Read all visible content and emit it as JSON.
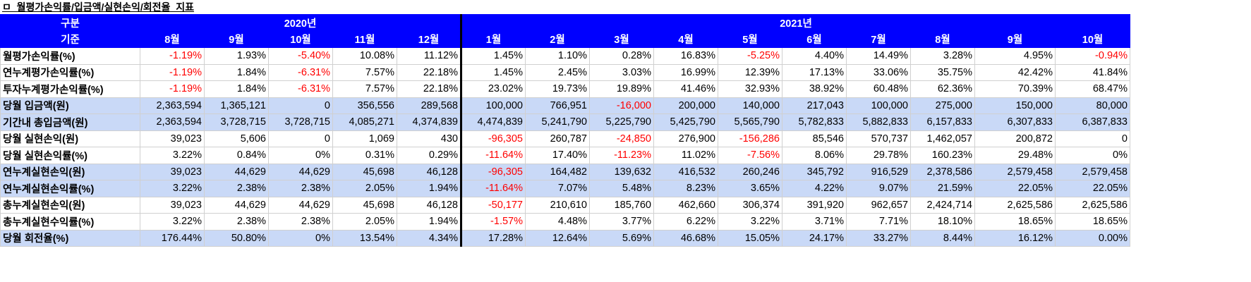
{
  "title": "ㅁ_월평가손익률/입금액/실현손익/회전율_지표",
  "header": {
    "row1_label": "구분",
    "row2_label": "기준",
    "year_2020": "2020년",
    "year_2021": "2021년",
    "months_2020": [
      "8월",
      "9월",
      "10월",
      "11월",
      "12월"
    ],
    "months_2021": [
      "1월",
      "2월",
      "3월",
      "4월",
      "5월",
      "6월",
      "7월",
      "8월",
      "9월",
      "10월"
    ]
  },
  "rows": [
    {
      "label": "월평가손익률(%)",
      "shaded": false,
      "values": [
        "-1.19%",
        "1.93%",
        "-5.40%",
        "10.08%",
        "11.12%",
        "1.45%",
        "1.10%",
        "0.28%",
        "16.83%",
        "-5.25%",
        "4.40%",
        "14.49%",
        "3.28%",
        "4.95%",
        "-0.94%"
      ]
    },
    {
      "label": "연누계평가손익률(%)",
      "shaded": false,
      "values": [
        "-1.19%",
        "1.84%",
        "-6.31%",
        "7.57%",
        "22.18%",
        "1.45%",
        "2.45%",
        "3.03%",
        "16.99%",
        "12.39%",
        "17.13%",
        "33.06%",
        "35.75%",
        "42.42%",
        "41.84%"
      ]
    },
    {
      "label": "투자누계평가손익률(%)",
      "shaded": false,
      "values": [
        "-1.19%",
        "1.84%",
        "-6.31%",
        "7.57%",
        "22.18%",
        "23.02%",
        "19.73%",
        "19.89%",
        "41.46%",
        "32.93%",
        "38.92%",
        "60.48%",
        "62.36%",
        "70.39%",
        "68.47%"
      ]
    },
    {
      "label": "당월 입금액(원)",
      "shaded": true,
      "values": [
        "2,363,594",
        "1,365,121",
        "0",
        "356,556",
        "289,568",
        "100,000",
        "766,951",
        "-16,000",
        "200,000",
        "140,000",
        "217,043",
        "100,000",
        "275,000",
        "150,000",
        "80,000"
      ]
    },
    {
      "label": "기간내 총입금액(원)",
      "shaded": true,
      "values": [
        "2,363,594",
        "3,728,715",
        "3,728,715",
        "4,085,271",
        "4,374,839",
        "4,474,839",
        "5,241,790",
        "5,225,790",
        "5,425,790",
        "5,565,790",
        "5,782,833",
        "5,882,833",
        "6,157,833",
        "6,307,833",
        "6,387,833"
      ]
    },
    {
      "label": "당월 실현손익(원)",
      "shaded": false,
      "values": [
        "39,023",
        "5,606",
        "0",
        "1,069",
        "430",
        "-96,305",
        "260,787",
        "-24,850",
        "276,900",
        "-156,286",
        "85,546",
        "570,737",
        "1,462,057",
        "200,872",
        "0"
      ]
    },
    {
      "label": "당월 실현손익률(%)",
      "shaded": false,
      "values": [
        "3.22%",
        "0.84%",
        "0%",
        "0.31%",
        "0.29%",
        "-11.64%",
        "17.40%",
        "-11.23%",
        "11.02%",
        "-7.56%",
        "8.06%",
        "29.78%",
        "160.23%",
        "29.48%",
        "0%"
      ]
    },
    {
      "label": "연누계실현손익(원)",
      "shaded": true,
      "values": [
        "39,023",
        "44,629",
        "44,629",
        "45,698",
        "46,128",
        "-96,305",
        "164,482",
        "139,632",
        "416,532",
        "260,246",
        "345,792",
        "916,529",
        "2,378,586",
        "2,579,458",
        "2,579,458"
      ]
    },
    {
      "label": "연누계실현손익률(%)",
      "shaded": true,
      "values": [
        "3.22%",
        "2.38%",
        "2.38%",
        "2.05%",
        "1.94%",
        "-11.64%",
        "7.07%",
        "5.48%",
        "8.23%",
        "3.65%",
        "4.22%",
        "9.07%",
        "21.59%",
        "22.05%",
        "22.05%"
      ]
    },
    {
      "label": "총누계실현손익(원)",
      "shaded": false,
      "values": [
        "39,023",
        "44,629",
        "44,629",
        "45,698",
        "46,128",
        "-50,177",
        "210,610",
        "185,760",
        "462,660",
        "306,374",
        "391,920",
        "962,657",
        "2,424,714",
        "2,625,586",
        "2,625,586"
      ]
    },
    {
      "label": "총누계실현수익률(%)",
      "shaded": false,
      "values": [
        "3.22%",
        "2.38%",
        "2.38%",
        "2.05%",
        "1.94%",
        "-1.57%",
        "4.48%",
        "3.77%",
        "6.22%",
        "3.22%",
        "3.71%",
        "7.71%",
        "18.10%",
        "18.65%",
        "18.65%"
      ]
    },
    {
      "label": "당월 회전율(%)",
      "shaded": true,
      "values": [
        "176.44%",
        "50.80%",
        "0%",
        "13.54%",
        "4.34%",
        "17.28%",
        "12.64%",
        "5.69%",
        "46.68%",
        "15.05%",
        "24.17%",
        "33.27%",
        "8.44%",
        "16.12%",
        "0.00%"
      ]
    }
  ]
}
